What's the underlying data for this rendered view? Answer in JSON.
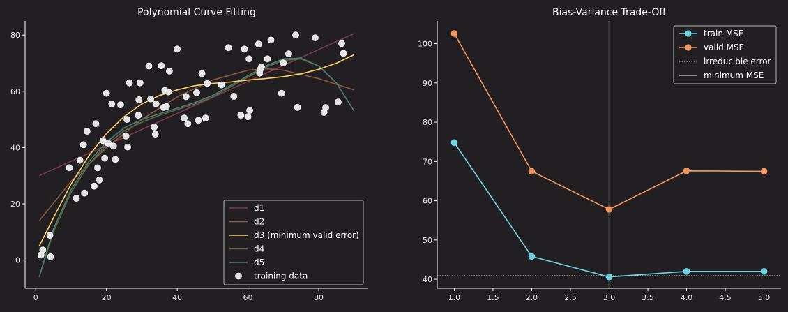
{
  "chart_data": [
    {
      "type": "scatter+line",
      "title": "Polynomial Curve Fitting",
      "xlim": [
        -3,
        94
      ],
      "ylim": [
        -10,
        85
      ],
      "xticks": [
        0,
        20,
        40,
        60,
        80
      ],
      "yticks": [
        0,
        20,
        40,
        60,
        80
      ],
      "legend_position": "lower-right",
      "colors": {
        "d1": "#7a3a4e",
        "d2": "#8b5a44",
        "d3": "#ffd166",
        "d4": "#5b6a45",
        "d5": "#4f7d6e",
        "points": "#e4e4e4"
      },
      "series": [
        {
          "name": "d1",
          "x": [
            1,
            90
          ],
          "y": [
            30,
            80.5
          ]
        },
        {
          "name": "d2",
          "x": [
            1,
            10,
            20,
            30,
            40,
            50,
            60,
            65,
            70,
            80,
            90
          ],
          "y": [
            14,
            28,
            40,
            50,
            58,
            64,
            67.5,
            68,
            67.5,
            64.5,
            60.5
          ]
        },
        {
          "name": "d3 (minimum valid error)",
          "x": [
            1,
            5,
            10,
            15,
            20,
            25,
            30,
            35,
            40,
            45,
            50,
            55,
            60,
            65,
            70,
            75,
            80,
            85,
            90
          ],
          "y": [
            5,
            15,
            27,
            37,
            45,
            51,
            55.5,
            58.5,
            60.5,
            62,
            62.8,
            63.3,
            64,
            64.5,
            65.2,
            66.2,
            67.8,
            70,
            73
          ]
        },
        {
          "name": "d4",
          "x": [
            1,
            5,
            10,
            15,
            20,
            25,
            30,
            35,
            40,
            45,
            50,
            55,
            60,
            65,
            70,
            75,
            80,
            85,
            90
          ],
          "y": [
            -6,
            10,
            24,
            34,
            41,
            46,
            49,
            51.5,
            53.5,
            55.5,
            58,
            61.5,
            65,
            68.5,
            71,
            71.5,
            69,
            63,
            53
          ]
        },
        {
          "name": "d5",
          "x": [
            1,
            5,
            10,
            15,
            20,
            25,
            30,
            35,
            40,
            45,
            50,
            55,
            60,
            65,
            70,
            75,
            80,
            85,
            90
          ],
          "y": [
            -6,
            11,
            25,
            35,
            42,
            47,
            50,
            52,
            54,
            56,
            58.5,
            62,
            65.5,
            69,
            71.5,
            71.8,
            69,
            63,
            53
          ]
        }
      ],
      "scatter": {
        "name": "training data",
        "x": [
          1.5,
          2,
          4,
          4.2,
          9.5,
          11.5,
          12.5,
          13.5,
          13.8,
          14.5,
          16.5,
          17,
          17.5,
          18,
          19,
          19.5,
          20,
          20.5,
          21.5,
          22,
          22.5,
          24,
          25.5,
          25.8,
          26,
          26.5,
          29,
          29.2,
          29.5,
          32,
          32.5,
          33.5,
          33.8,
          34,
          35.5,
          36.2,
          36.5,
          37,
          37.5,
          37.8,
          40,
          42,
          42.5,
          43,
          45.5,
          46,
          47,
          48,
          48.5,
          52.5,
          54.5,
          56,
          58,
          59,
          60,
          60.3,
          60.5,
          63,
          63.3,
          63.5,
          63.8,
          65.5,
          66.5,
          69.5,
          70,
          71.5,
          73.5,
          74,
          79,
          81.5,
          82,
          85.5,
          86.5,
          87
        ],
        "y": [
          1.8,
          3.6,
          8.8,
          1.2,
          32.8,
          22,
          35.5,
          41,
          23.8,
          45.8,
          26.3,
          48.5,
          32.8,
          28.5,
          42.5,
          36.2,
          59.3,
          41.5,
          55.5,
          40.5,
          35.8,
          55.2,
          44.1,
          50,
          40.2,
          63,
          51.5,
          57,
          63,
          69,
          57.3,
          47.3,
          44.8,
          55.5,
          69.1,
          54.3,
          60.3,
          54.6,
          59.8,
          67.2,
          75,
          50.5,
          58.1,
          48.5,
          59.5,
          49.7,
          66.3,
          50.5,
          62.8,
          62.3,
          75.5,
          58.2,
          51.5,
          75,
          51,
          71.5,
          53.2,
          76.8,
          66.5,
          67.8,
          68.7,
          71.5,
          78.2,
          59.3,
          70.1,
          73.3,
          80,
          54.3,
          79,
          52.5,
          54.2,
          56.2,
          77,
          73.5
        ]
      }
    },
    {
      "type": "line",
      "title": "Bias-Variance Trade-Off",
      "xlim": [
        0.78,
        5.22
      ],
      "ylim": [
        37.7,
        105.8
      ],
      "xticks": [
        1.0,
        1.5,
        2.0,
        2.5,
        3.0,
        3.5,
        4.0,
        4.5,
        5.0
      ],
      "xticklabels": [
        "1.0",
        "1.5",
        "2.0",
        "2.5",
        "3.0",
        "3.5",
        "4.0",
        "4.5",
        "5.0"
      ],
      "yticks": [
        40,
        50,
        60,
        70,
        80,
        90,
        100
      ],
      "legend_position": "upper-right",
      "colors": {
        "train": "#6fd3e3",
        "valid": "#f4965f",
        "irreducible": "#e0e0e0",
        "minimum": "#ffffff"
      },
      "x": [
        1,
        2,
        3,
        4,
        5
      ],
      "series": [
        {
          "name": "train MSE",
          "values": [
            74.8,
            45.8,
            40.6,
            42.0,
            42.0
          ]
        },
        {
          "name": "valid MSE",
          "values": [
            102.6,
            67.5,
            57.8,
            67.6,
            67.5
          ]
        }
      ],
      "hlines": [
        {
          "name": "irreducible error",
          "y": 40.9
        }
      ],
      "vlines": [
        {
          "name": "minimum MSE",
          "x": 3.0
        }
      ]
    }
  ]
}
